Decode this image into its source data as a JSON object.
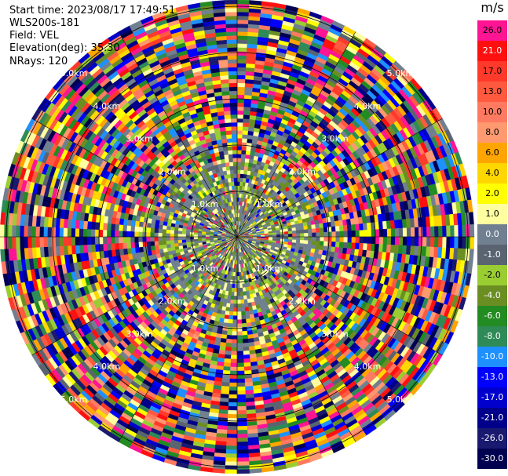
{
  "header": {
    "start_time": "Start time: 2023/08/17 17:49:51",
    "site": "WLS200s-181",
    "field": "Field: VEL",
    "elevation": "Elevation(deg): 35.30",
    "nrays": "NRays: 120"
  },
  "colorbar": {
    "unit": "m/s",
    "entries": [
      {
        "label": "26.0",
        "color": "#ff1493"
      },
      {
        "label": "21.0",
        "color": "#ff1010"
      },
      {
        "label": "17.0",
        "color": "#ff3a2a"
      },
      {
        "label": "13.0",
        "color": "#ff5a40"
      },
      {
        "label": "10.0",
        "color": "#ff7a60"
      },
      {
        "label": "8.0",
        "color": "#ff9a70"
      },
      {
        "label": "6.0",
        "color": "#ffa500"
      },
      {
        "label": "4.0",
        "color": "#ffd700"
      },
      {
        "label": "2.0",
        "color": "#ffff00"
      },
      {
        "label": "1.0",
        "color": "#ffffa0"
      },
      {
        "label": "0.0",
        "color": "#708090"
      },
      {
        "label": "-1.0",
        "color": "#5a6470"
      },
      {
        "label": "-2.0",
        "color": "#9acd32"
      },
      {
        "label": "-4.0",
        "color": "#6b8e23"
      },
      {
        "label": "-6.0",
        "color": "#228b22"
      },
      {
        "label": "-8.0",
        "color": "#2e8b57"
      },
      {
        "label": "-10.0",
        "color": "#1e90ff"
      },
      {
        "label": "-13.0",
        "color": "#0000ff"
      },
      {
        "label": "-17.0",
        "color": "#0000cd"
      },
      {
        "label": "-21.0",
        "color": "#00008b"
      },
      {
        "label": "-26.0",
        "color": "#191970"
      },
      {
        "label": "-30.0",
        "color": "#000050"
      }
    ]
  },
  "range_rings": [
    "1.0km",
    "2.0km",
    "3.0km",
    "4.0km",
    "5.0km"
  ]
}
